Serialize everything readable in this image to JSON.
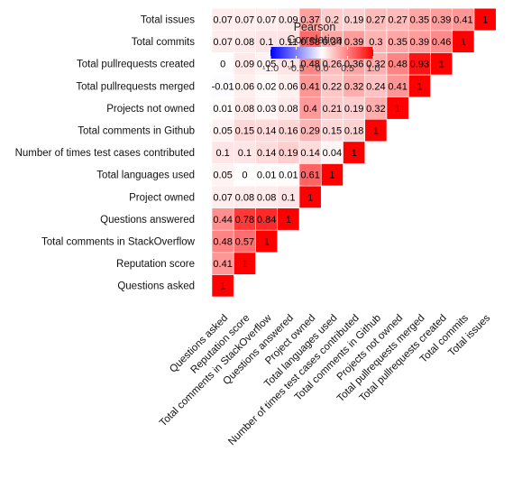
{
  "chart_data": {
    "type": "heatmap",
    "variables": [
      "Questions asked",
      "Reputation score",
      "Total comments in StackOverflow",
      "Questions answered",
      "Project owned",
      "Total languages used",
      "Number of times test cases contributed",
      "Total comments in Github",
      "Projects not owned",
      "Total pullrequests merged",
      "Total pullrequests created",
      "Total commits",
      "Total issues"
    ],
    "rows": [
      {
        "label": "Questions asked",
        "values": [
          1
        ]
      },
      {
        "label": "Reputation score",
        "values": [
          0.41,
          1
        ]
      },
      {
        "label": "Total comments in StackOverflow",
        "values": [
          0.48,
          0.57,
          1
        ]
      },
      {
        "label": "Questions answered",
        "values": [
          0.44,
          0.78,
          0.84,
          1
        ]
      },
      {
        "label": "Project owned",
        "values": [
          0.07,
          0.08,
          0.08,
          0.1,
          1
        ]
      },
      {
        "label": "Total languages used",
        "values": [
          0.05,
          0,
          0.01,
          0.01,
          0.61,
          1
        ]
      },
      {
        "label": "Number of times test cases contributed",
        "values": [
          0.1,
          0.1,
          0.14,
          0.19,
          0.14,
          0.04,
          1
        ]
      },
      {
        "label": "Total comments in Github",
        "values": [
          0.05,
          0.15,
          0.14,
          0.16,
          0.29,
          0.15,
          0.18,
          1
        ]
      },
      {
        "label": "Projects not owned",
        "values": [
          0.01,
          0.08,
          0.03,
          0.08,
          0.4,
          0.21,
          0.19,
          0.32,
          1
        ]
      },
      {
        "label": "Total pullrequests merged",
        "values": [
          -0.01,
          0.06,
          0.02,
          0.06,
          0.41,
          0.22,
          0.32,
          0.24,
          0.41,
          1
        ]
      },
      {
        "label": "Total pullrequests created",
        "values": [
          0,
          0.09,
          0.05,
          0.1,
          0.48,
          0.26,
          0.36,
          0.32,
          0.48,
          0.93,
          1
        ]
      },
      {
        "label": "Total commits",
        "values": [
          0.07,
          0.08,
          0.1,
          0.11,
          0.58,
          0.34,
          0.39,
          0.3,
          0.35,
          0.39,
          0.46,
          1
        ]
      },
      {
        "label": "Total issues",
        "values": [
          0.07,
          0.07,
          0.07,
          0.09,
          0.37,
          0.2,
          0.19,
          0.27,
          0.27,
          0.35,
          0.39,
          0.41,
          1
        ]
      }
    ],
    "value_labels": [
      [
        "1"
      ],
      [
        "0.41",
        "1"
      ],
      [
        "0.48",
        "0.57",
        "1"
      ],
      [
        "0.44",
        "0.78",
        "0.84",
        "1"
      ],
      [
        "0.07",
        "0.08",
        "0.08",
        "0.1",
        "1"
      ],
      [
        "0.05",
        "0",
        "0.01",
        "0.01",
        "0.61",
        "1"
      ],
      [
        "0.1",
        "0.1",
        "0.14",
        "0.19",
        "0.14",
        "0.04",
        "1"
      ],
      [
        "0.05",
        "0.15",
        "0.14",
        "0.16",
        "0.29",
        "0.15",
        "0.18",
        "1"
      ],
      [
        "0.01",
        "0.08",
        "0.03",
        "0.08",
        "0.4",
        "0.21",
        "0.19",
        "0.32",
        "1"
      ],
      [
        "-0.01",
        "0.06",
        "0.02",
        "0.06",
        "0.41",
        "0.22",
        "0.32",
        "0.24",
        "0.41",
        "1"
      ],
      [
        "0",
        "0.09",
        "0.05",
        "0.1",
        "0.48",
        "0.26",
        "0.36",
        "0.32",
        "0.48",
        "0.93",
        "1"
      ],
      [
        "0.07",
        "0.08",
        "0.1",
        "0.11",
        "0.58",
        "0.34",
        "0.39",
        "0.3",
        "0.35",
        "0.39",
        "0.46",
        "1"
      ],
      [
        "0.07",
        "0.07",
        "0.07",
        "0.09",
        "0.37",
        "0.2",
        "0.19",
        "0.27",
        "0.27",
        "0.35",
        "0.39",
        "0.41",
        "1"
      ]
    ],
    "legend": {
      "title_lines": [
        "Pearson",
        "Correlation"
      ],
      "range": [
        -1,
        1
      ],
      "ticks": [
        -1,
        -0.5,
        0,
        0.5,
        1
      ],
      "tick_labels": [
        "-1.0",
        "-0.5",
        "0.0",
        "0.5",
        "1.0"
      ],
      "placement": "top",
      "colors": {
        "low": "#0000ff",
        "mid": "#ffffff",
        "high": "#ff0000"
      }
    },
    "layout": "lower-triangle",
    "grid": false
  }
}
